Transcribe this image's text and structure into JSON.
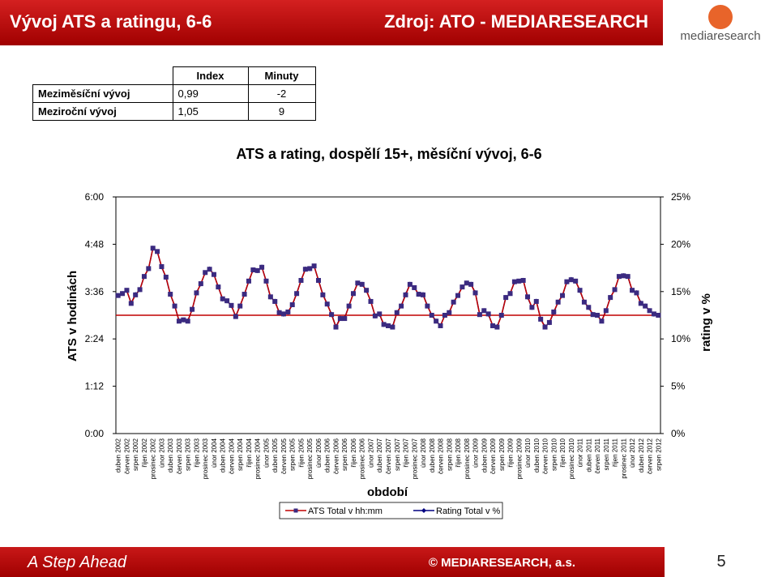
{
  "header": {
    "title": "Vývoj ATS a ratingu, 6-6",
    "source": "Zdroj: ATO - MEDIARESEARCH",
    "logo": "mediaresearch"
  },
  "table": {
    "columns": [
      "Index",
      "Minuty"
    ],
    "rows": [
      [
        "Meziměsíční vývoj",
        "0,99",
        "-2"
      ],
      [
        "Meziroční vývoj",
        "1,05",
        "9"
      ]
    ]
  },
  "footer": {
    "slogan": "A Step Ahead",
    "copyright": "© MEDIARESEARCH, a.s.",
    "page": "5"
  },
  "chart_data": {
    "type": "line",
    "title": "ATS a rating, dospělí 15+, měsíční vývoj, 6-6",
    "y_label": "ATS v hodinách",
    "y2_label": "rating v %",
    "x_label": "období",
    "categories": [
      "duben 2002",
      null,
      "červen 2002",
      null,
      "srpen 2002",
      null,
      "říjen 2002",
      null,
      "prosinec 2002",
      null,
      "únor 2003",
      null,
      "duben 2003",
      null,
      "červen 2003",
      null,
      "srpen 2003",
      null,
      "říjen 2003",
      null,
      "prosinec 2003",
      null,
      "únor 2004",
      null,
      "duben 2004",
      null,
      "červen 2004",
      null,
      "srpen 2004",
      null,
      "říjen 2004",
      null,
      "prosinec 2004",
      null,
      "únor 2005",
      null,
      "duben 2005",
      null,
      "červen 2005",
      null,
      "srpen 2005",
      null,
      "říjen 2005",
      null,
      "prosinec 2005",
      null,
      "únor 2006",
      null,
      "duben 2006",
      null,
      "červen 2006",
      null,
      "srpen 2006",
      null,
      "říjen 2006",
      null,
      "prosinec 2006",
      null,
      "únor 2007",
      null,
      "duben 2007",
      null,
      "červen 2007",
      null,
      "srpen 2007",
      null,
      "říjen 2007",
      null,
      "prosinec 2007",
      null,
      "únor 2008",
      null,
      "duben 2008",
      null,
      "červen 2008",
      null,
      "srpen 2008",
      null,
      "říjen 2008",
      null,
      "prosinec 2008",
      null,
      "únor 2009",
      null,
      "duben 2009",
      null,
      "červen 2009",
      null,
      "srpen 2009",
      null,
      "říjen 2009",
      null,
      "prosinec 2009",
      null,
      "únor 2010",
      null,
      "duben 2010",
      null,
      "červen 2010",
      null,
      "srpen 2010",
      null,
      "říjen 2010",
      null,
      "prosinec 2010",
      null,
      "únor 2011",
      null,
      "duben 2011",
      null,
      "červen 2011",
      null,
      "srpen 2011",
      null,
      "říjen 2011",
      null,
      "prosinec 2011",
      null,
      "únor 2012",
      null,
      "duben 2012",
      null,
      "červen 2012",
      null,
      "srpen 2012"
    ],
    "series": [
      {
        "name": "Rating Total v %",
        "color": "#000080",
        "axis": "y2",
        "marker": "diamond",
        "values": [
          14.6,
          14.8,
          15.1,
          13.8,
          14.7,
          15.2,
          16.6,
          17.4,
          19.6,
          19.2,
          17.6,
          16.5,
          14.7,
          13.5,
          11.9,
          12.0,
          11.9,
          13.1,
          14.9,
          15.8,
          17.0,
          17.4,
          16.8,
          15.5,
          14.2,
          14.0,
          13.5,
          12.4,
          13.5,
          14.7,
          16.1,
          17.3,
          17.2,
          17.6,
          16.1,
          14.4,
          14.0,
          12.8,
          12.6,
          12.8,
          13.6,
          14.8,
          16.2,
          17.4,
          17.4,
          17.7,
          16.2,
          14.7,
          13.7,
          12.6,
          11.3,
          12.2,
          12.2,
          13.5,
          14.8,
          15.9,
          15.8,
          15.1,
          14.0,
          12.4,
          12.6,
          11.5,
          11.4,
          11.3,
          12.8,
          13.5,
          14.7,
          15.8,
          15.4,
          14.7,
          14.7,
          13.5,
          12.5,
          11.9,
          11.4,
          12.5,
          12.8,
          13.9,
          14.6,
          15.5,
          15.9,
          15.8,
          14.9,
          12.6,
          13.0,
          12.6,
          11.4,
          11.3,
          12.5,
          14.4,
          14.8,
          16.0,
          16.1,
          16.2,
          14.4,
          13.3,
          14.0,
          12.1,
          11.3,
          11.7,
          12.8,
          13.9,
          14.6,
          16.0,
          16.3,
          16.1,
          15.1,
          13.9,
          13.3,
          12.6,
          12.5,
          11.9,
          13.0,
          14.4,
          15.2,
          16.6,
          16.7,
          16.6,
          15.1,
          14.9,
          13.8,
          13.5,
          13.0,
          12.6,
          12.5
        ]
      },
      {
        "name": "ATS Total v hh:mm",
        "color": "#c00000",
        "marker_color": "#3b2a80",
        "marker": "square",
        "values": [
          210,
          213,
          218,
          198,
          211,
          219,
          239,
          251,
          282,
          277,
          254,
          238,
          212,
          194,
          171,
          173,
          171,
          189,
          214,
          228,
          245,
          250,
          242,
          223,
          205,
          202,
          195,
          178,
          194,
          212,
          232,
          249,
          248,
          253,
          232,
          208,
          201,
          184,
          182,
          185,
          196,
          213,
          233,
          250,
          251,
          255,
          233,
          211,
          197,
          181,
          162,
          175,
          175,
          194,
          213,
          229,
          227,
          218,
          201,
          179,
          182,
          166,
          164,
          162,
          184,
          194,
          211,
          227,
          222,
          212,
          211,
          194,
          180,
          171,
          164,
          180,
          184,
          200,
          210,
          223,
          229,
          227,
          214,
          181,
          187,
          182,
          164,
          162,
          180,
          207,
          213,
          231,
          232,
          233,
          208,
          192,
          201,
          174,
          162,
          169,
          185,
          200,
          210,
          231,
          234,
          232,
          218,
          200,
          192,
          181,
          180,
          171,
          187,
          207,
          219,
          239,
          240,
          239,
          218,
          214,
          198,
          194,
          187,
          182,
          180
        ]
      }
    ],
    "reference_line": {
      "value": 180,
      "color": "#c00000"
    },
    "ylim": [
      0,
      360
    ],
    "yticks": [
      {
        "value": 0,
        "label": "0:00"
      },
      {
        "value": 72,
        "label": "1:12"
      },
      {
        "value": 144,
        "label": "2:24"
      },
      {
        "value": 216,
        "label": "3:36"
      },
      {
        "value": 288,
        "label": "4:48"
      },
      {
        "value": 360,
        "label": "6:00"
      }
    ],
    "y2lim": [
      0,
      25
    ],
    "y2ticks": [
      {
        "value": 0,
        "label": "0%"
      },
      {
        "value": 5,
        "label": "5%"
      },
      {
        "value": 10,
        "label": "10%"
      },
      {
        "value": 15,
        "label": "15%"
      },
      {
        "value": 20,
        "label": "20%"
      },
      {
        "value": 25,
        "label": "25%"
      }
    ],
    "legend": "bottom"
  }
}
